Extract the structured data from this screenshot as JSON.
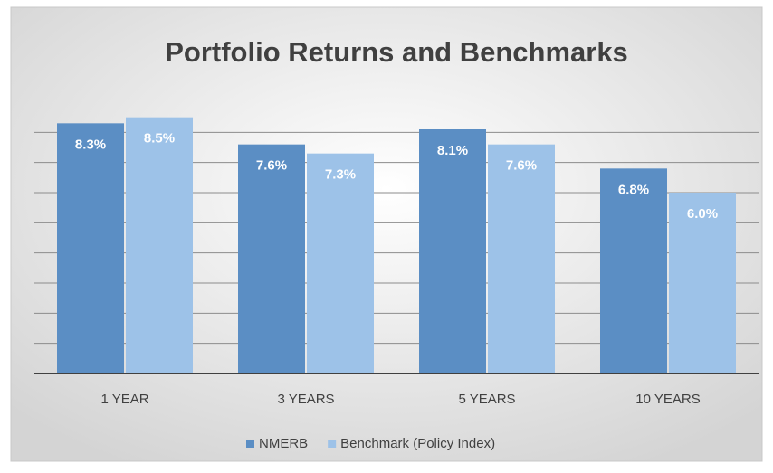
{
  "chart_data": {
    "type": "bar",
    "title": "Portfolio Returns and Benchmarks",
    "categories": [
      "1 YEAR",
      "3 YEARS",
      "5 YEARS",
      "10 YEARS"
    ],
    "series": [
      {
        "name": "NMERB",
        "color": "#5b8ec4",
        "values": [
          8.3,
          7.6,
          8.1,
          6.8
        ],
        "value_labels": [
          "8.3%",
          "7.6%",
          "8.1%",
          "6.8%"
        ]
      },
      {
        "name": "Benchmark (Policy Index)",
        "color": "#9dc2e8",
        "values": [
          8.5,
          7.3,
          7.6,
          6.0
        ],
        "value_labels": [
          "8.5%",
          "7.3%",
          "7.6%",
          "6.0%"
        ]
      }
    ],
    "ylim": [
      0,
      9
    ],
    "yticks": [
      0,
      1,
      2,
      3,
      4,
      5,
      6,
      7,
      8
    ],
    "grid": true,
    "legend": "bottom"
  }
}
